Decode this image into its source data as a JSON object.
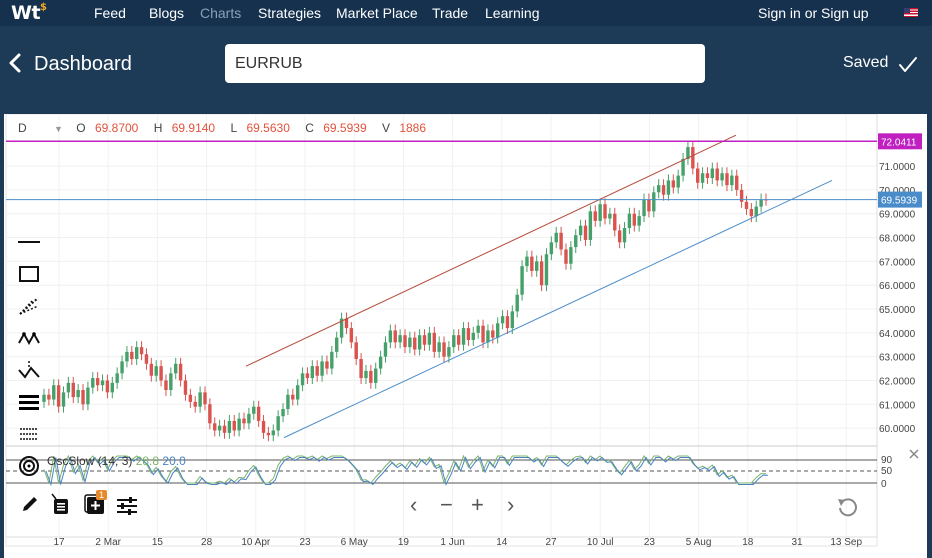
{
  "nav": {
    "logo": "Wt",
    "logo_sup": "$",
    "items": [
      "Feed",
      "Blogs",
      "Charts",
      "Strategies",
      "Market Place",
      "Trade",
      "Learning"
    ],
    "signin": "Sign in or Sign up"
  },
  "header": {
    "title": "Dashboard",
    "symbol": "EURRUB",
    "saved": "Saved"
  },
  "ohlc": {
    "interval": "D",
    "o_label": "O",
    "o": "69.8700",
    "h_label": "H",
    "h": "69.9140",
    "l_label": "L",
    "l": "69.5630",
    "c_label": "C",
    "c": "69.5939",
    "v_label": "V",
    "v": "1886"
  },
  "colors": {
    "nav_bg": "#15314e",
    "header_bg": "#1d3a57",
    "up": "#46a06a",
    "down": "#d9534f",
    "resistance": "#c020c0",
    "price_line": "#4a8cc9"
  },
  "chart_data": {
    "type": "candlestick",
    "symbol": "EURRUB",
    "x_tick_labels": [
      "17",
      "2 Mar",
      "15",
      "28",
      "10 Apr",
      "23",
      "6 May",
      "19",
      "1 Jun",
      "14",
      "27",
      "10 Jul",
      "23",
      "5 Aug",
      "18",
      "31",
      "13 Sep"
    ],
    "y_tick_labels": [
      "71.0000",
      "70.0000",
      "69.0000",
      "68.0000",
      "67.0000",
      "66.0000",
      "65.0000",
      "64.0000",
      "63.0000",
      "62.0000",
      "61.0000",
      "60.0000"
    ],
    "ylim": [
      59.5,
      72.6
    ],
    "resistance_label": "72.0411",
    "last_price_label": "69.5939",
    "closes": [
      61.4,
      61.2,
      61.8,
      60.9,
      61.5,
      61.9,
      61.3,
      61.6,
      61.0,
      61.7,
      62.1,
      61.8,
      62.0,
      61.5,
      61.9,
      62.3,
      62.8,
      63.2,
      62.9,
      63.4,
      63.1,
      62.7,
      62.2,
      62.6,
      62.0,
      61.6,
      62.3,
      62.7,
      62.0,
      61.4,
      61.1,
      60.9,
      61.5,
      61.0,
      60.2,
      59.9,
      60.1,
      59.8,
      60.3,
      59.9,
      60.4,
      60.2,
      60.6,
      60.9,
      60.3,
      59.8,
      59.7,
      59.9,
      60.5,
      60.8,
      61.4,
      61.2,
      61.8,
      62.3,
      62.1,
      62.6,
      62.2,
      62.8,
      62.5,
      63.2,
      63.8,
      64.6,
      64.2,
      63.6,
      62.9,
      62.1,
      62.4,
      61.9,
      62.5,
      63.0,
      63.6,
      64.1,
      63.6,
      63.9,
      63.4,
      63.8,
      63.3,
      63.9,
      63.5,
      64.0,
      63.2,
      63.6,
      63.0,
      63.4,
      63.9,
      63.5,
      64.2,
      63.7,
      64.0,
      64.3,
      63.6,
      64.1,
      63.8,
      64.4,
      64.7,
      64.2,
      64.9,
      65.6,
      66.8,
      67.2,
      66.6,
      67.0,
      66.0,
      67.3,
      67.8,
      68.2,
      67.5,
      66.9,
      67.6,
      68.1,
      68.5,
      67.9,
      69.1,
      68.7,
      69.4,
      68.8,
      69.0,
      68.3,
      67.8,
      68.4,
      69.0,
      68.5,
      68.9,
      69.6,
      69.1,
      69.9,
      70.2,
      69.8,
      70.4,
      70.1,
      70.6,
      71.3,
      71.8,
      70.9,
      70.3,
      70.7,
      70.5,
      70.9,
      70.4,
      70.7,
      70.2,
      70.6,
      70.0,
      69.5,
      69.2,
      68.9,
      69.3,
      69.6,
      69.59
    ],
    "indicator": {
      "name": "OscSlow (14, 3)",
      "k": "28.8",
      "d": "20.0",
      "scale_labels": [
        "90",
        "50",
        "0"
      ]
    }
  },
  "tools": {
    "nav_prev": "‹",
    "zoom_out": "−",
    "zoom_in": "+",
    "nav_next": "›",
    "badge_count": "1"
  }
}
